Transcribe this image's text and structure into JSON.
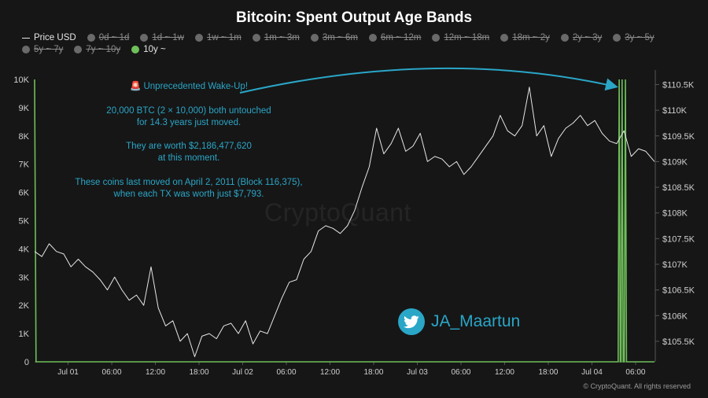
{
  "chart_data": {
    "type": "line",
    "title": "Bitcoin: Spent Output Age Bands",
    "legend": [
      {
        "name": "Price USD",
        "active": true,
        "marker": "line"
      },
      {
        "name": "0d ~ 1d",
        "active": false,
        "marker": "dot"
      },
      {
        "name": "1d ~ 1w",
        "active": false,
        "marker": "dot"
      },
      {
        "name": "1w ~ 1m",
        "active": false,
        "marker": "dot"
      },
      {
        "name": "1m ~ 3m",
        "active": false,
        "marker": "dot"
      },
      {
        "name": "3m ~ 6m",
        "active": false,
        "marker": "dot"
      },
      {
        "name": "6m ~ 12m",
        "active": false,
        "marker": "dot"
      },
      {
        "name": "12m ~ 18m",
        "active": false,
        "marker": "dot"
      },
      {
        "name": "18m ~ 2y",
        "active": false,
        "marker": "dot"
      },
      {
        "name": "2y ~ 3y",
        "active": false,
        "marker": "dot"
      },
      {
        "name": "3y ~ 5y",
        "active": false,
        "marker": "dot"
      },
      {
        "name": "5y ~ 7y",
        "active": false,
        "marker": "dot"
      },
      {
        "name": "7y ~ 10y",
        "active": false,
        "marker": "dot"
      },
      {
        "name": "10y ~",
        "active": true,
        "marker": "dot",
        "color": "#6fbf5a"
      }
    ],
    "x_ticks": [
      "Jul 01",
      "06:00",
      "12:00",
      "18:00",
      "Jul 02",
      "06:00",
      "12:00",
      "18:00",
      "Jul 03",
      "06:00",
      "12:00",
      "18:00",
      "Jul 04",
      "06:00"
    ],
    "x_range_hours": [
      -4.6,
      80.6
    ],
    "y_left": {
      "ticks": [
        "0",
        "1K",
        "2K",
        "3K",
        "4K",
        "5K",
        "6K",
        "7K",
        "8K",
        "9K",
        "10K"
      ],
      "range": [
        0,
        10000
      ]
    },
    "y_right": {
      "ticks": [
        "$105.5K",
        "$106K",
        "$106.5K",
        "$107K",
        "$107.5K",
        "$108K",
        "$108.5K",
        "$109K",
        "$109.5K",
        "$110K",
        "$110.5K"
      ],
      "range": [
        105100,
        110600
      ]
    },
    "series": [
      {
        "name": "Price USD",
        "axis": "right",
        "color": "#e6e6e6",
        "hours": [
          -4.6,
          -3.6,
          -2.6,
          -1.6,
          -0.6,
          0.4,
          1.4,
          2.4,
          3.4,
          4.4,
          5.4,
          6.4,
          7.4,
          8.4,
          9.4,
          10.4,
          11.4,
          12.4,
          13.4,
          14.4,
          15.4,
          16.4,
          17.4,
          18.4,
          19.4,
          20.4,
          21.4,
          22.4,
          23.4,
          24.4,
          25.4,
          26.4,
          27.4,
          28.4,
          29.4,
          30.4,
          31.4,
          32.4,
          33.4,
          34.4,
          35.4,
          36.4,
          37.4,
          38.4,
          39.4,
          40.4,
          41.4,
          42.4,
          43.4,
          44.4,
          45.4,
          46.4,
          47.4,
          48.4,
          49.4,
          50.4,
          51.4,
          52.4,
          53.4,
          54.4,
          55.4,
          56.4,
          57.4,
          58.4,
          59.4,
          60.4,
          61.4,
          62.4,
          63.4,
          64.4,
          65.4,
          66.4,
          67.4,
          68.4,
          69.4,
          70.4,
          71.4,
          72.4,
          73.4,
          74.4,
          75.4,
          76.4,
          77.4,
          78.4,
          79.4,
          80.6
        ],
        "values": [
          107250,
          107150,
          107400,
          107250,
          107200,
          106950,
          107100,
          106950,
          106850,
          106700,
          106500,
          106750,
          106500,
          106300,
          106400,
          106200,
          106950,
          106150,
          105800,
          105900,
          105500,
          105650,
          105200,
          105600,
          105650,
          105550,
          105800,
          105850,
          105650,
          105900,
          105450,
          105700,
          105650,
          106000,
          106350,
          106650,
          106700,
          107100,
          107250,
          107650,
          107750,
          107700,
          107600,
          107750,
          108050,
          108500,
          108900,
          109650,
          109150,
          109350,
          109650,
          109200,
          109300,
          109550,
          109000,
          109100,
          109050,
          108900,
          109000,
          108750,
          108900,
          109100,
          109300,
          109500,
          109900,
          109600,
          109500,
          109700,
          110450,
          109500,
          109700,
          109100,
          109450,
          109650,
          109750,
          109900,
          109700,
          109800,
          109550,
          109400,
          109350,
          109600,
          109100,
          109250,
          109200,
          109000
        ]
      },
      {
        "name": "10y ~",
        "axis": "left",
        "color": "#6fbf5a",
        "hours": [
          -4.6,
          -4.4,
          75.5,
          75.6,
          75.75,
          75.9,
          76.0,
          76.15,
          76.3,
          76.45,
          76.6,
          76.75,
          76.9,
          77.1,
          80.6
        ],
        "values": [
          10000,
          0,
          0,
          0,
          10000,
          0,
          0,
          10000,
          0,
          0,
          10000,
          0,
          0,
          0,
          0
        ]
      }
    ],
    "annotations": [
      {
        "lines": [
          "🚨 Unprecedented Wake-Up!"
        ]
      },
      {
        "lines": [
          "20,000 BTC (2 × 10,000) both untouched",
          "for 14.3 years just moved."
        ]
      },
      {
        "lines": [
          "They are worth $2,186,477,620",
          "at this moment."
        ]
      },
      {
        "lines": [
          "These coins last moved on April 2, 2011 (Block 116,375),",
          "when each TX was worth just $7,793."
        ]
      }
    ],
    "grid": false
  },
  "branding": {
    "watermark": "CryptoQuant",
    "twitter_handle": "JA_Maartun",
    "copyright": "© CryptoQuant. All rights reserved"
  }
}
